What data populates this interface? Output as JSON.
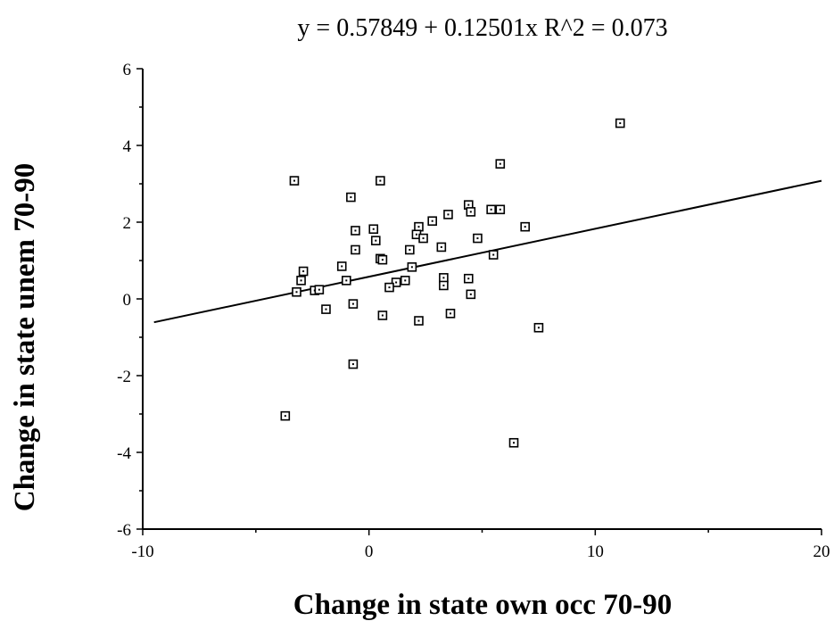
{
  "chart_data": {
    "type": "scatter",
    "title": "y = 0.57849 + 0.12501x   R^2 = 0.073",
    "xlabel": "Change in state own occ 70-90",
    "ylabel": "Change in state unem 70-90",
    "xlim": [
      -10,
      20
    ],
    "ylim": [
      -6,
      6
    ],
    "xticks": [
      -10,
      0,
      10,
      20
    ],
    "yticks": [
      -6,
      -4,
      -2,
      0,
      2,
      4,
      6
    ],
    "xtick_labels": [
      "-10",
      "0",
      "10",
      "20"
    ],
    "ytick_labels": [
      "-6",
      "-4",
      "-2",
      "0",
      "2",
      "4",
      "6"
    ],
    "grid": false,
    "fit_line": {
      "intercept": 0.57849,
      "slope": 0.12501
    },
    "points": [
      [
        11.1,
        4.58
      ],
      [
        -3.3,
        3.08
      ],
      [
        0.5,
        3.08
      ],
      [
        -0.8,
        2.65
      ],
      [
        5.8,
        3.52
      ],
      [
        -0.6,
        1.78
      ],
      [
        -0.6,
        1.28
      ],
      [
        0.3,
        1.52
      ],
      [
        0.2,
        1.82
      ],
      [
        2.2,
        1.88
      ],
      [
        2.1,
        1.68
      ],
      [
        2.4,
        1.58
      ],
      [
        2.8,
        2.03
      ],
      [
        3.5,
        2.2
      ],
      [
        4.4,
        2.45
      ],
      [
        4.5,
        2.27
      ],
      [
        5.4,
        2.33
      ],
      [
        5.8,
        2.33
      ],
      [
        6.9,
        1.88
      ],
      [
        4.8,
        1.58
      ],
      [
        3.2,
        1.35
      ],
      [
        1.8,
        1.28
      ],
      [
        5.5,
        1.15
      ],
      [
        0.5,
        1.05
      ],
      [
        0.6,
        1.02
      ],
      [
        1.9,
        0.83
      ],
      [
        -1.2,
        0.85
      ],
      [
        -2.9,
        0.72
      ],
      [
        -3.0,
        0.48
      ],
      [
        -1.0,
        0.48
      ],
      [
        1.6,
        0.48
      ],
      [
        1.2,
        0.43
      ],
      [
        0.9,
        0.3
      ],
      [
        3.3,
        0.55
      ],
      [
        3.3,
        0.35
      ],
      [
        4.4,
        0.53
      ],
      [
        4.5,
        0.12
      ],
      [
        -2.4,
        0.22
      ],
      [
        -2.2,
        0.24
      ],
      [
        -3.2,
        0.18
      ],
      [
        -1.9,
        -0.27
      ],
      [
        -0.7,
        -0.13
      ],
      [
        0.6,
        -0.43
      ],
      [
        2.2,
        -0.57
      ],
      [
        3.6,
        -0.38
      ],
      [
        7.5,
        -0.75
      ],
      [
        -0.7,
        -1.7
      ],
      [
        -3.7,
        -3.05
      ],
      [
        6.4,
        -3.75
      ]
    ]
  }
}
